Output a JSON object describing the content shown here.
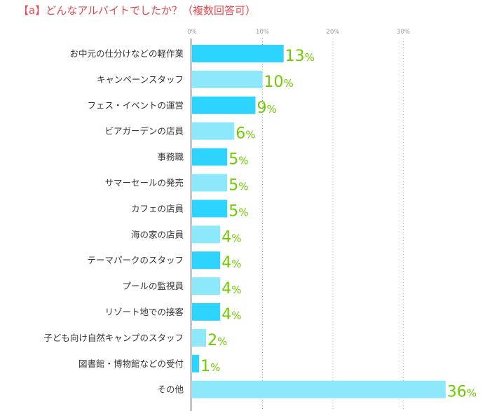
{
  "chart_data": {
    "type": "bar",
    "orientation": "horizontal",
    "title": "【a】どんなアルバイトでしたか？（複数回答可）",
    "categories": [
      "お中元の仕分けなどの軽作業",
      "キャンペーンスタッフ",
      "フェス・イベントの運営",
      "ビアガーデンの店員",
      "事務職",
      "サマーセールの発売",
      "カフェの店員",
      "海の家の店員",
      "テーマパークのスタッフ",
      "プールの監視員",
      "リゾート地での接客",
      "子ども向け自然キャンプのスタッフ",
      "図書館・博物館などの受付",
      "その他"
    ],
    "values": [
      13,
      10,
      9,
      6,
      5,
      5,
      5,
      4,
      4,
      4,
      4,
      2,
      1,
      36
    ],
    "unit": "%",
    "xticks": [
      "0%",
      "10%",
      "20%",
      "30%"
    ],
    "xlim": [
      0,
      40
    ],
    "grid": true,
    "colors": {
      "bar_dark": "#2dd4ff",
      "bar_light": "#8ee8fc",
      "value_label": "#6fcb00",
      "title": "#e8474f",
      "axis": "#c8c8c8"
    }
  }
}
